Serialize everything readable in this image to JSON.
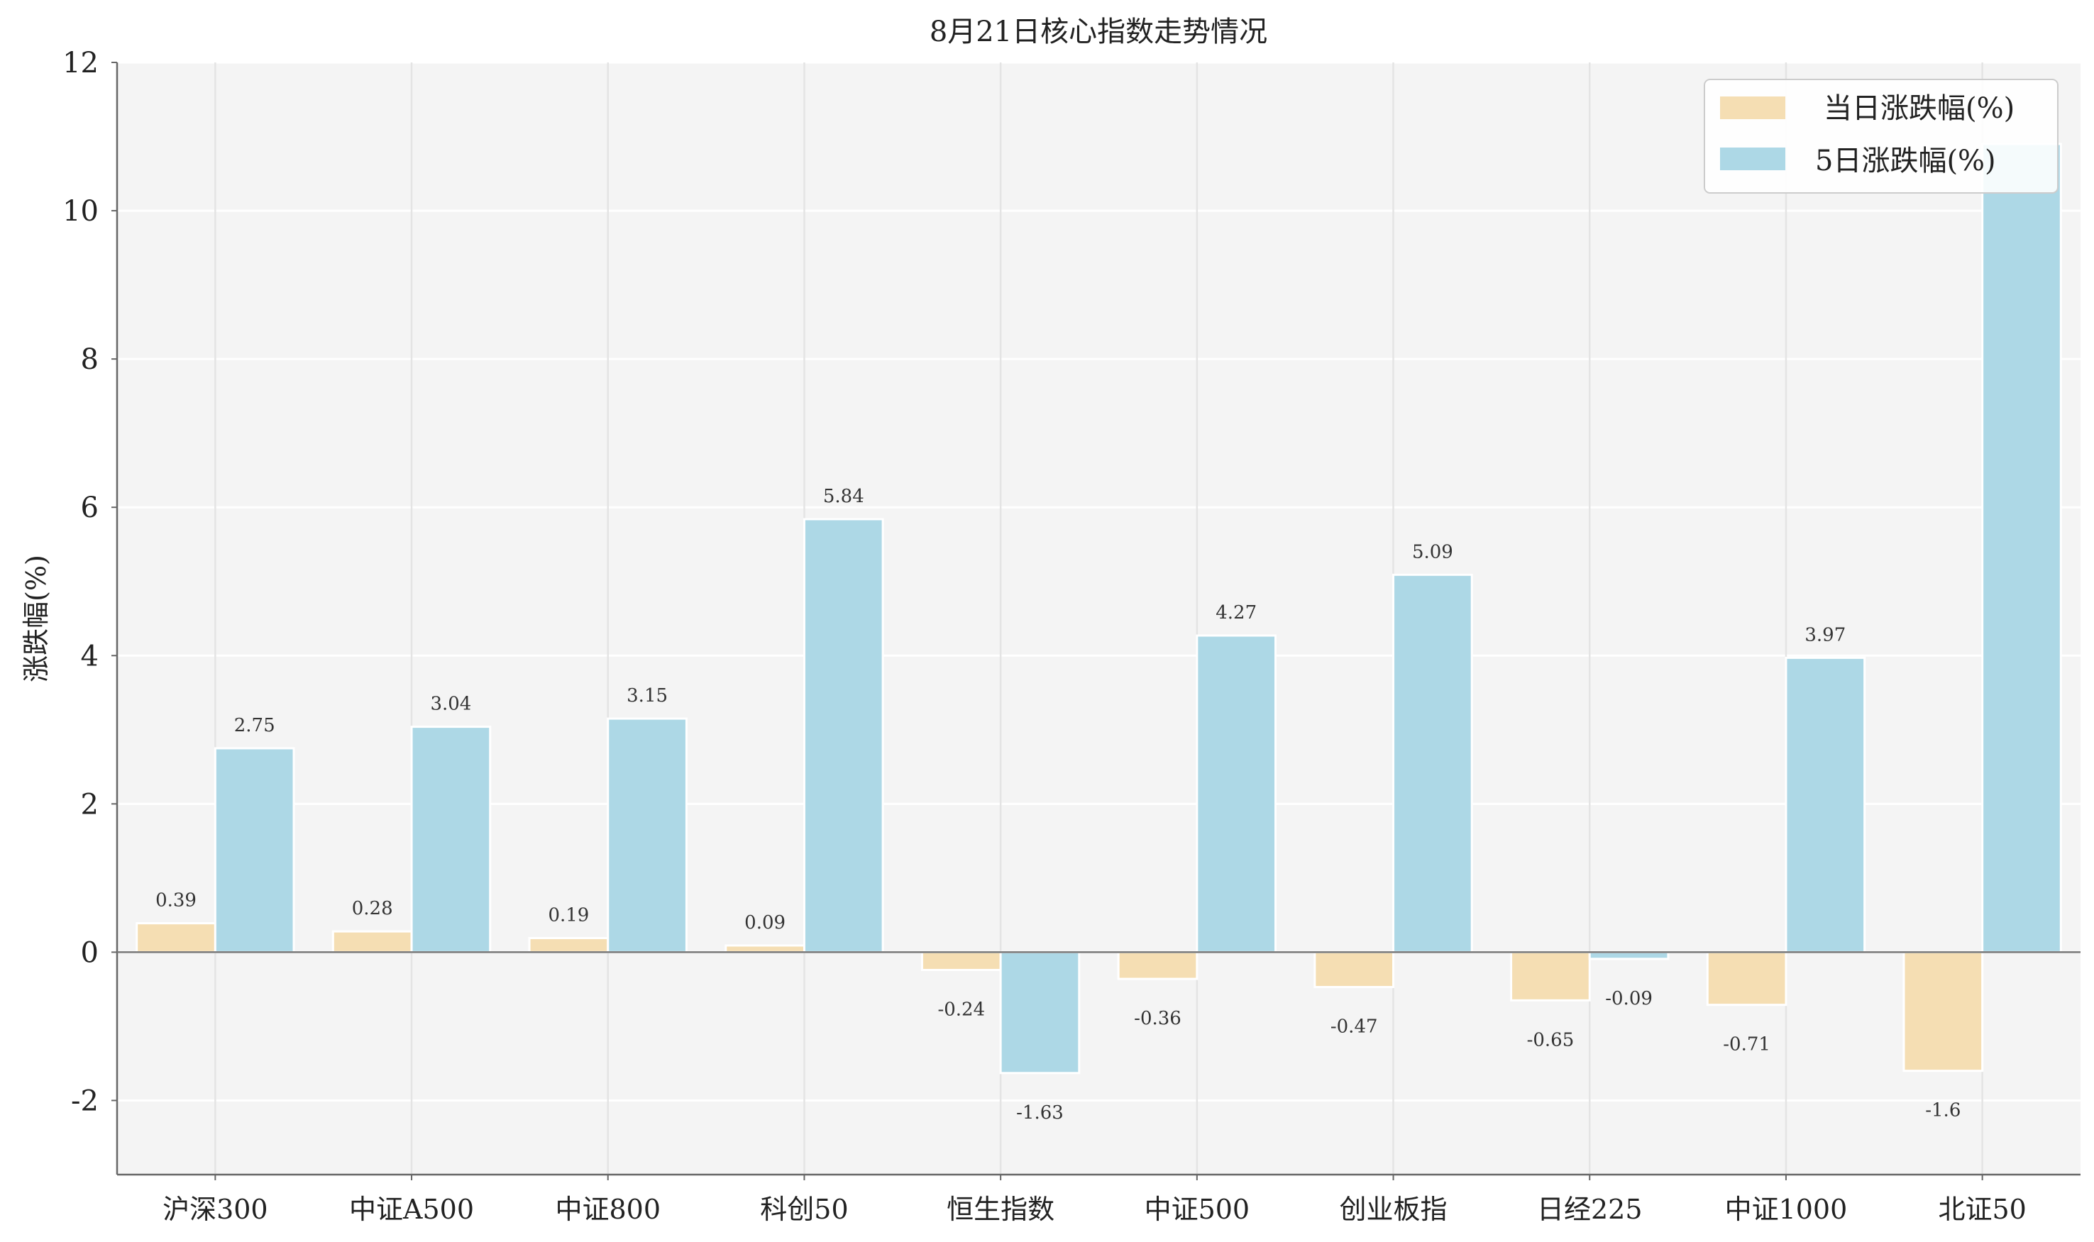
{
  "chart_data": {
    "type": "bar",
    "title": "8月21日核心指数走势情况",
    "ylabel": "涨跌幅(%)",
    "xlabel": "",
    "ylim": [
      -3,
      12
    ],
    "yticks": [
      -2,
      0,
      2,
      4,
      6,
      8,
      10,
      12
    ],
    "grid": true,
    "legend_position": "top-right",
    "categories": [
      "沪深300",
      "中证A500",
      "中证800",
      "科创50",
      "恒生指数",
      "中证500",
      "创业板指",
      "日经225",
      "中证1000",
      "北证50"
    ],
    "series": [
      {
        "name": "当日涨跌幅(%)",
        "color": "#f5deb3",
        "values": [
          0.39,
          0.28,
          0.19,
          0.09,
          -0.24,
          -0.36,
          -0.47,
          -0.65,
          -0.71,
          -1.6
        ],
        "labels": [
          "0.39",
          "0.28",
          "0.19",
          "0.09",
          "-0.24",
          "-0.36",
          "-0.47",
          "-0.65",
          "-0.71",
          "-1.6"
        ]
      },
      {
        "name": "5日涨跌幅(%)",
        "color": "#add8e6",
        "values": [
          2.75,
          3.04,
          3.15,
          5.84,
          -1.63,
          4.27,
          5.09,
          -0.09,
          3.97,
          10.9
        ],
        "labels": [
          "2.75",
          "3.04",
          "3.15",
          "5.84",
          "-1.63",
          "4.27",
          "5.09",
          "-0.09",
          "3.97",
          ""
        ]
      }
    ]
  }
}
